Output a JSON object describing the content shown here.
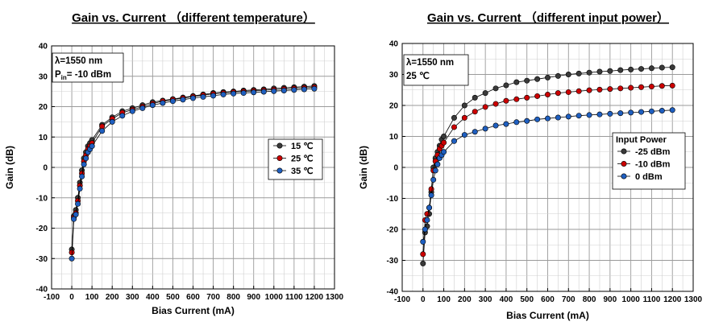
{
  "chart_data": [
    {
      "type": "line",
      "title": "Gain vs. Current （different temperature）",
      "xlabel": "Bias Current (mA)",
      "ylabel": "Gain (dB)",
      "xlim": [
        -100,
        1300
      ],
      "ylim": [
        -40,
        40
      ],
      "xticks": [
        "-100",
        "0",
        "100",
        "200",
        "300",
        "400",
        "500",
        "600",
        "700",
        "800",
        "900",
        "1000",
        "1100",
        "1200",
        "1300"
      ],
      "yticks": [
        "-40",
        "-30",
        "-20",
        "-10",
        "0",
        "10",
        "20",
        "30",
        "40"
      ],
      "grid": true,
      "annotation": {
        "line1": "λ=1550 nm",
        "line2_main": "P",
        "line2_sub": "in",
        "line2_rest": "= -10 dBm"
      },
      "legend": {
        "title": "",
        "position": "center-right"
      },
      "x": [
        0,
        10,
        20,
        30,
        40,
        50,
        60,
        70,
        80,
        90,
        100,
        150,
        200,
        250,
        300,
        350,
        400,
        450,
        500,
        550,
        600,
        650,
        700,
        750,
        800,
        850,
        900,
        950,
        1000,
        1050,
        1100,
        1150,
        1200
      ],
      "series": [
        {
          "name": "15 ℃",
          "color": "#3a3a3a",
          "values": [
            -27,
            -16,
            -14,
            -10,
            -5,
            -1,
            3,
            5,
            7,
            8,
            9,
            14,
            16.5,
            18.5,
            19.5,
            20.5,
            21.5,
            22,
            22.5,
            23,
            23.5,
            24,
            24.5,
            24.8,
            25,
            25.3,
            25.5,
            25.7,
            26,
            26.2,
            26.4,
            26.6,
            26.8
          ]
        },
        {
          "name": "25 ℃",
          "color": "#cc0000",
          "values": [
            -28,
            -16.5,
            -15,
            -11,
            -6,
            -2,
            2,
            4,
            6,
            7,
            8,
            13.5,
            16,
            18,
            19,
            20,
            21,
            21.8,
            22.3,
            22.8,
            23.3,
            23.8,
            24.2,
            24.5,
            24.8,
            25,
            25.2,
            25.4,
            25.6,
            25.8,
            26,
            26.2,
            26.4
          ]
        },
        {
          "name": "35 ℃",
          "color": "#1f5fc0",
          "values": [
            -30,
            -17,
            -15.5,
            -12,
            -7,
            -3,
            1,
            3,
            5,
            6,
            7,
            12,
            15,
            17,
            18.5,
            19.5,
            20.5,
            21.2,
            21.8,
            22.3,
            22.8,
            23.2,
            23.6,
            24,
            24.3,
            24.5,
            24.7,
            24.9,
            25.1,
            25.3,
            25.5,
            25.7,
            25.9
          ]
        }
      ]
    },
    {
      "type": "line",
      "title": "Gain vs. Current （different input power）",
      "xlabel": "Bias Current (mA)",
      "ylabel": "Gain (dB)",
      "xlim": [
        -100,
        1300
      ],
      "ylim": [
        -40,
        40
      ],
      "xticks": [
        "-100",
        "0",
        "100",
        "200",
        "300",
        "400",
        "500",
        "600",
        "700",
        "800",
        "900",
        "1000",
        "1100",
        "1200",
        "1300"
      ],
      "yticks": [
        "-40",
        "-30",
        "-20",
        "-10",
        "0",
        "10",
        "20",
        "30",
        "40"
      ],
      "grid": true,
      "annotation": {
        "line1": "λ=1550 nm",
        "line2_main": "25 ℃",
        "line2_sub": "",
        "line2_rest": ""
      },
      "legend": {
        "title": "Input Power",
        "position": "center-right"
      },
      "x": [
        0,
        10,
        20,
        30,
        40,
        50,
        60,
        70,
        80,
        90,
        100,
        150,
        200,
        250,
        300,
        350,
        400,
        450,
        500,
        550,
        600,
        650,
        700,
        750,
        800,
        850,
        900,
        950,
        1000,
        1050,
        1100,
        1150,
        1200
      ],
      "series": [
        {
          "name": "-25 dBm",
          "color": "#3a3a3a",
          "values": [
            -31,
            -21,
            -19,
            -15,
            -8,
            0,
            3,
            5,
            7,
            9,
            10,
            16,
            20,
            22.5,
            24,
            25.5,
            26.5,
            27.5,
            28,
            28.5,
            29,
            29.5,
            30,
            30.3,
            30.6,
            30.9,
            31.1,
            31.4,
            31.6,
            31.8,
            32,
            32.2,
            32.3
          ]
        },
        {
          "name": "-10 dBm",
          "color": "#cc0000",
          "values": [
            -28,
            -17,
            -15,
            -13,
            -7,
            -1,
            2,
            4,
            6,
            7,
            8,
            13,
            16,
            18,
            19.5,
            20.5,
            21.5,
            22,
            22.5,
            23,
            23.5,
            24,
            24.3,
            24.6,
            24.9,
            25.1,
            25.3,
            25.5,
            25.7,
            25.9,
            26.1,
            26.3,
            26.4
          ]
        },
        {
          "name": "0 dBm",
          "color": "#1f5fc0",
          "values": [
            -24,
            -20,
            -17,
            -13,
            -9,
            -4,
            -1,
            1,
            3,
            4,
            5,
            8.5,
            10.5,
            11.5,
            12.5,
            13.5,
            14,
            14.6,
            15,
            15.5,
            15.8,
            16.1,
            16.4,
            16.7,
            16.9,
            17.1,
            17.3,
            17.5,
            17.7,
            17.9,
            18.1,
            18.3,
            18.5
          ]
        }
      ]
    }
  ]
}
